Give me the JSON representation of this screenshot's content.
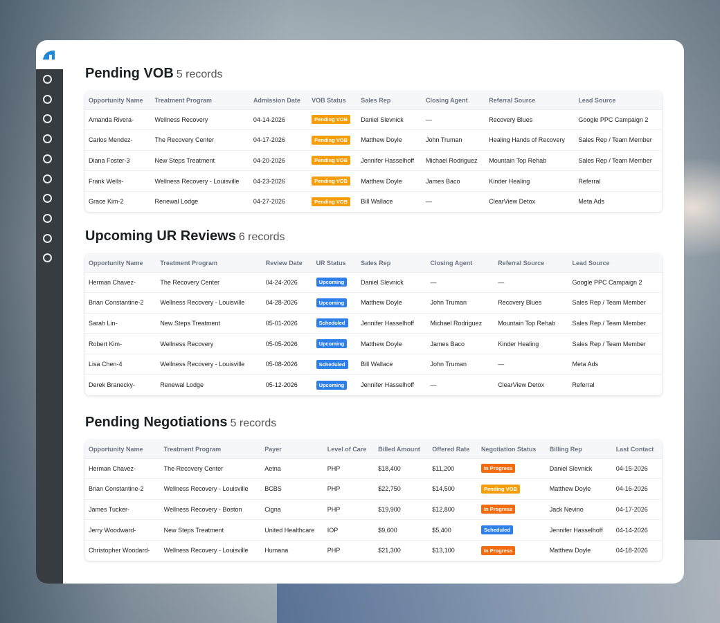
{
  "sections": [
    {
      "title": "Pending VOB",
      "count": "5 records",
      "columns": [
        "Opportunity Name",
        "Treatment Program",
        "Admission Date",
        "VOB Status",
        "Sales Rep",
        "Closing Agent",
        "Referral Source",
        "Lead Source"
      ],
      "rows": [
        [
          "Amanda Rivera-",
          "Wellness Recovery",
          "04-14-2026",
          "Pending VOB",
          "Daniel Slevnick",
          "—",
          "Recovery Blues",
          "Google PPC Campaign 2"
        ],
        [
          "Carlos Mendez-",
          "The Recovery Center",
          "04-17-2026",
          "Pending VOB",
          "Matthew Doyle",
          "John Truman",
          "Healing Hands of Recovery",
          "Sales Rep / Team Member"
        ],
        [
          "Diana Foster-3",
          "New Steps Treatment",
          "04-20-2026",
          "Pending VOB",
          "Jennifer Hasselhoff",
          "Michael Rodriguez",
          "Mountain Top Rehab",
          "Sales Rep / Team Member"
        ],
        [
          "Frank Wells-",
          "Wellness Recovery - Louisville",
          "04-23-2026",
          "Pending VOB",
          "Matthew Doyle",
          "James Baco",
          "Kinder Healing",
          "Referral"
        ],
        [
          "Grace Kim-2",
          "Renewal Lodge",
          "04-27-2026",
          "Pending VOB",
          "Bill Wallace",
          "—",
          "ClearView Detox",
          "Meta Ads"
        ]
      ]
    },
    {
      "title": "Upcoming UR Reviews",
      "count": "6 records",
      "columns": [
        "Opportunity Name",
        "Treatment Program",
        "Review Date",
        "UR Status",
        "Sales Rep",
        "Closing Agent",
        "Referral Source",
        "Lead Source"
      ],
      "rows": [
        [
          "Herman Chavez-",
          "The Recovery Center",
          "04-24-2026",
          "Upcoming",
          "Daniel Slevnick",
          "—",
          "—",
          "Google PPC Campaign 2"
        ],
        [
          "Brian Constantine-2",
          "Wellness Recovery - Louisville",
          "04-28-2026",
          "Upcoming",
          "Matthew Doyle",
          "John Truman",
          "Recovery Blues",
          "Sales Rep / Team Member"
        ],
        [
          "Sarah Lin-",
          "New Steps Treatment",
          "05-01-2026",
          "Scheduled",
          "Jennifer Hasselhoff",
          "Michael Rodriguez",
          "Mountain Top Rehab",
          "Sales Rep / Team Member"
        ],
        [
          "Robert Kim-",
          "Wellness Recovery",
          "05-05-2026",
          "Upcoming",
          "Matthew Doyle",
          "James Baco",
          "Kinder Healing",
          "Sales Rep / Team Member"
        ],
        [
          "Lisa Chen-4",
          "Wellness Recovery - Louisville",
          "05-08-2026",
          "Scheduled",
          "Bill Wallace",
          "John Truman",
          "—",
          "Meta Ads"
        ],
        [
          "Derek Branecky-",
          "Renewal Lodge",
          "05-12-2026",
          "Upcoming",
          "Jennifer Hasselhoff",
          "—",
          "ClearView Detox",
          "Referral"
        ]
      ]
    },
    {
      "title": "Pending Negotiations",
      "count": "5 records",
      "columns": [
        "Opportunity Name",
        "Treatment Program",
        "Payer",
        "Level of Care",
        "Billed Amount",
        "Offered Rate",
        "Negotiation Status",
        "Billing Rep",
        "Last Contact"
      ],
      "rows": [
        [
          "Herman Chavez-",
          "The Recovery Center",
          "Aetna",
          "PHP",
          "$18,400",
          "$11,200",
          "In Progress",
          "Daniel Slevnick",
          "04-15-2026"
        ],
        [
          "Brian Constantine-2",
          "Wellness Recovery - Louisville",
          "BCBS",
          "PHP",
          "$22,750",
          "$14,500",
          "Pending VOB",
          "Matthew Doyle",
          "04-16-2026"
        ],
        [
          "James Tucker-",
          "Wellness Recovery - Boston",
          "Cigna",
          "PHP",
          "$19,900",
          "$12,800",
          "In Progress",
          "Jack Nevino",
          "04-17-2026"
        ],
        [
          "Jerry Woodward-",
          "New Steps Treatment",
          "United Healthcare",
          "IOP",
          "$9,600",
          "$5,400",
          "Scheduled",
          "Jennifer Hasselhoff",
          "04-14-2026"
        ],
        [
          "Christopher Woodard-",
          "Wellness Recovery - Louisville",
          "Humana",
          "PHP",
          "$21,300",
          "$13,100",
          "In Progress",
          "Matthew Doyle",
          "04-18-2026"
        ]
      ]
    }
  ],
  "badge_colors": {
    "Pending VOB": "#f59e0b",
    "Upcoming": "#2f7fe8",
    "Scheduled": "#2f7fe8",
    "In Progress": "#f26b0f"
  }
}
